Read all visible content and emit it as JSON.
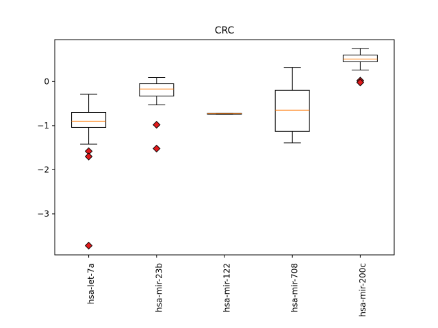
{
  "chart_data": {
    "type": "box",
    "title": "CRC",
    "xlabel": "",
    "ylabel": "",
    "ylim": [
      -3.93,
      0.95
    ],
    "yticks": [
      -3,
      -2,
      -1,
      0
    ],
    "categories": [
      "hsa-let-7a",
      "hsa-mir-23b",
      "hsa-mir-122",
      "hsa-mir-708",
      "hsa-mir-200c"
    ],
    "boxes": [
      {
        "whisker_low": -1.42,
        "q1": -1.04,
        "median": -0.9,
        "q3": -0.7,
        "whisker_high": -0.29,
        "outliers": [
          -1.58,
          -1.7,
          -3.72
        ]
      },
      {
        "whisker_low": -0.53,
        "q1": -0.33,
        "median": -0.17,
        "q3": -0.05,
        "whisker_high": 0.09,
        "outliers": [
          -0.98,
          -1.52
        ]
      },
      {
        "whisker_low": -0.74,
        "q1": -0.74,
        "median": -0.73,
        "q3": -0.72,
        "whisker_high": -0.72,
        "outliers": []
      },
      {
        "whisker_low": -1.39,
        "q1": -1.13,
        "median": -0.65,
        "q3": -0.2,
        "whisker_high": 0.32,
        "outliers": []
      },
      {
        "whisker_low": 0.26,
        "q1": 0.45,
        "median": 0.51,
        "q3": 0.6,
        "whisker_high": 0.75,
        "outliers": [
          0.02,
          -0.02
        ]
      }
    ],
    "grid": false,
    "colors": {
      "box": "#000000",
      "median": "#ff7f0e",
      "outlier_fill": "#e31a1c",
      "outlier_edge": "#000000"
    }
  }
}
